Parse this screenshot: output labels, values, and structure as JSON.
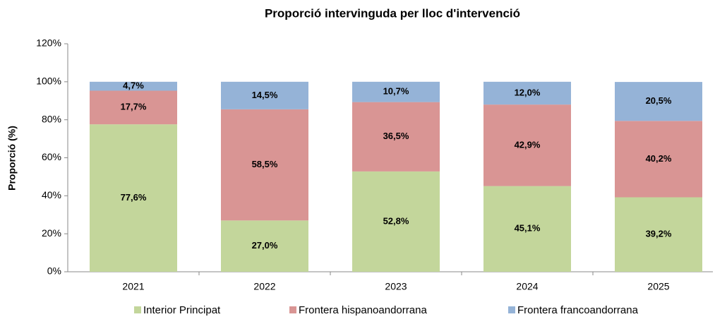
{
  "chart_data": {
    "type": "stacked_bar",
    "title": "Proporció intervinguda per lloc d'intervenció",
    "ylabel": "Proporció (%)",
    "categories": [
      "2021",
      "2022",
      "2023",
      "2024",
      "2025"
    ],
    "series": [
      {
        "name": "Interior Principat",
        "color": "#c3d69b",
        "values": [
          77.6,
          27.0,
          52.8,
          45.1,
          39.2
        ],
        "value_labels": [
          "77,6%",
          "27,0%",
          "52,8%",
          "45,1%",
          "39,2%"
        ]
      },
      {
        "name": "Frontera hispanoandorrana",
        "color": "#d99594",
        "values": [
          17.7,
          58.5,
          36.5,
          42.9,
          40.2
        ],
        "value_labels": [
          "17,7%",
          "58,5%",
          "36,5%",
          "42,9%",
          "40,2%"
        ]
      },
      {
        "name": "Frontera francoandorrana",
        "color": "#95b3d7",
        "values": [
          4.7,
          14.5,
          10.7,
          12.0,
          20.5
        ],
        "value_labels": [
          "4,7%",
          "14,5%",
          "10,7%",
          "12,0%",
          "20,5%"
        ]
      }
    ],
    "ylim": [
      0,
      120
    ],
    "yticks": [
      {
        "value": 0,
        "label": "0%"
      },
      {
        "value": 20,
        "label": "20%"
      },
      {
        "value": 40,
        "label": "40%"
      },
      {
        "value": 60,
        "label": "60%"
      },
      {
        "value": 80,
        "label": "80%"
      },
      {
        "value": 100,
        "label": "100%"
      },
      {
        "value": 120,
        "label": "120%"
      }
    ],
    "legend": "bottom"
  }
}
